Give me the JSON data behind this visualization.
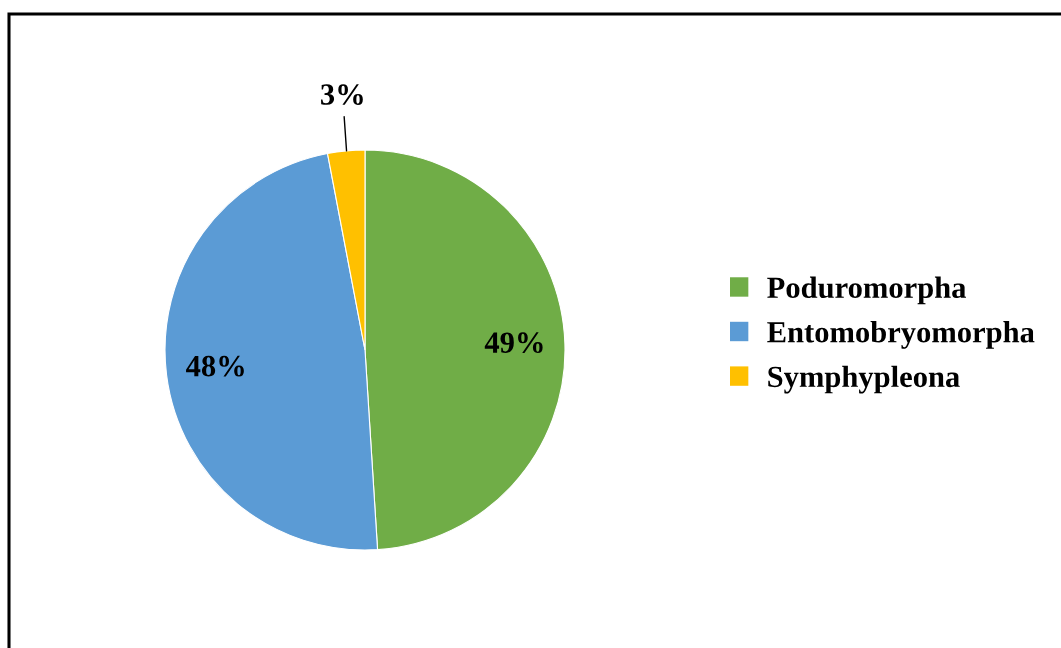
{
  "chart_data": {
    "type": "pie",
    "categories": [
      "Poduromorpha",
      "Entomobryomorpha",
      "Symphypleona"
    ],
    "values": [
      49,
      48,
      3
    ],
    "colors": [
      "#70ad47",
      "#5b9bd5",
      "#ffc000"
    ],
    "value_labels": [
      "49%",
      "48%",
      "3%"
    ],
    "legend": "right"
  }
}
